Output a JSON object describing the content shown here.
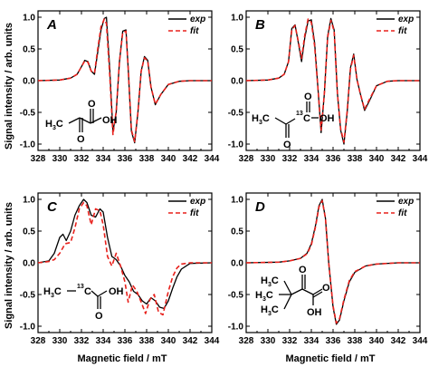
{
  "figure": {
    "xlabel_bottom_left": "Magnetic field / mT",
    "xlabel_bottom_right": "Magnetic field / mT",
    "ylabel_top": "Signal intensity / arb. units",
    "ylabel_bottom": "Signal intensity / arb. units"
  },
  "colors": {
    "exp": "#000000",
    "fit": "#e8211c"
  },
  "chart_data": [
    {
      "panel": "A",
      "type": "line",
      "xlim": [
        328,
        344
      ],
      "ylim": [
        -1.1,
        1.1
      ],
      "xticks": [
        328,
        330,
        332,
        334,
        336,
        338,
        340,
        342,
        344
      ],
      "yticks": [
        -1.0,
        -0.5,
        0.0,
        0.5,
        1.0
      ],
      "legend": "top-right",
      "structure": {
        "lines": [
          "H3C",
          "O",
          "OH",
          "O"
        ]
      },
      "series": [
        {
          "name": "exp",
          "style": "solid",
          "color": "#000000",
          "x": [
            328,
            330,
            331,
            331.6,
            332,
            332.3,
            332.6,
            332.9,
            333.2,
            333.5,
            333.8,
            334.1,
            334.3,
            334.6,
            334.9,
            335.2,
            335.5,
            335.8,
            336.1,
            336.3,
            336.6,
            336.9,
            337.2,
            337.5,
            337.8,
            338.1,
            338.4,
            338.8,
            339.3,
            340,
            341,
            342,
            344
          ],
          "y": [
            0,
            0.01,
            0.04,
            0.1,
            0.22,
            0.32,
            0.3,
            0.15,
            0.1,
            0.45,
            0.8,
            0.98,
            1.0,
            0.2,
            -0.8,
            -0.5,
            0.3,
            0.78,
            0.8,
            0.2,
            -0.8,
            -0.98,
            -0.5,
            0.15,
            0.38,
            0.32,
            -0.1,
            -0.38,
            -0.22,
            -0.06,
            -0.01,
            0,
            0
          ]
        },
        {
          "name": "fit",
          "style": "dashed",
          "color": "#e8211c",
          "x": [
            328,
            330,
            331,
            331.6,
            332,
            332.3,
            332.6,
            332.9,
            333.2,
            333.5,
            333.8,
            334.1,
            334.3,
            334.6,
            334.9,
            335.2,
            335.5,
            335.8,
            336.1,
            336.3,
            336.6,
            336.9,
            337.2,
            337.5,
            337.8,
            338.1,
            338.4,
            338.8,
            339.3,
            340,
            341,
            342,
            344
          ],
          "y": [
            0,
            0.01,
            0.04,
            0.1,
            0.22,
            0.31,
            0.29,
            0.15,
            0.12,
            0.5,
            0.85,
            0.97,
            0.9,
            0.1,
            -0.85,
            -0.48,
            0.3,
            0.76,
            0.78,
            0.2,
            -0.78,
            -0.96,
            -0.5,
            0.15,
            0.36,
            0.31,
            -0.1,
            -0.37,
            -0.22,
            -0.06,
            -0.01,
            0,
            0
          ]
        }
      ]
    },
    {
      "panel": "B",
      "type": "line",
      "xlim": [
        328,
        344
      ],
      "ylim": [
        -1.1,
        1.1
      ],
      "xticks": [
        328,
        330,
        332,
        334,
        336,
        338,
        340,
        342,
        344
      ],
      "yticks": [
        -1.0,
        -0.5,
        0.0,
        0.5,
        1.0
      ],
      "legend": "top-right",
      "structure": {
        "lines": [
          "H3C",
          "13",
          "C",
          "OH",
          "O",
          "O"
        ]
      },
      "series": [
        {
          "name": "exp",
          "style": "solid",
          "color": "#000000",
          "x": [
            328,
            330,
            331,
            331.5,
            331.9,
            332.2,
            332.5,
            332.8,
            333.1,
            333.4,
            333.7,
            334,
            334.3,
            334.6,
            334.9,
            335.2,
            335.5,
            335.8,
            336.1,
            336.4,
            336.7,
            337,
            337.3,
            337.6,
            337.9,
            338.2,
            338.5,
            338.9,
            339.4,
            340,
            341,
            342,
            344
          ],
          "y": [
            0,
            0.01,
            0.04,
            0.1,
            0.3,
            0.82,
            0.88,
            0.6,
            0.3,
            0.68,
            0.94,
            0.96,
            0.6,
            -0.1,
            -0.82,
            -0.2,
            0.7,
            0.98,
            0.8,
            -0.2,
            -0.78,
            -1.0,
            -0.5,
            0.2,
            0.42,
            0.02,
            -0.2,
            -0.47,
            -0.3,
            -0.08,
            -0.01,
            0,
            0
          ]
        },
        {
          "name": "fit",
          "style": "dashed",
          "color": "#e8211c",
          "x": [
            328,
            330,
            331,
            331.5,
            331.9,
            332.2,
            332.5,
            332.8,
            333.1,
            333.4,
            333.7,
            334,
            334.3,
            334.6,
            334.9,
            335.2,
            335.5,
            335.8,
            336.1,
            336.4,
            336.7,
            337,
            337.3,
            337.6,
            337.9,
            338.2,
            338.5,
            338.9,
            339.4,
            340,
            341,
            342,
            344
          ],
          "y": [
            0,
            0.01,
            0.04,
            0.1,
            0.3,
            0.8,
            0.87,
            0.62,
            0.35,
            0.72,
            0.97,
            0.92,
            0.55,
            -0.1,
            -0.78,
            -0.2,
            0.68,
            0.95,
            0.78,
            -0.2,
            -0.76,
            -0.97,
            -0.48,
            0.18,
            0.4,
            0.02,
            -0.2,
            -0.45,
            -0.28,
            -0.08,
            -0.01,
            0,
            0
          ]
        }
      ]
    },
    {
      "panel": "C",
      "type": "line",
      "xlim": [
        328,
        344
      ],
      "ylim": [
        -1.1,
        1.1
      ],
      "xticks": [
        328,
        330,
        332,
        334,
        336,
        338,
        340,
        342,
        344
      ],
      "yticks": [
        -1.0,
        -0.5,
        0.0,
        0.5,
        1.0
      ],
      "legend": "top-right",
      "structure": {
        "lines": [
          "H3C",
          "13",
          "C",
          "OH",
          "O"
        ]
      },
      "series": [
        {
          "name": "exp",
          "style": "solid",
          "color": "#000000",
          "x": [
            328,
            329,
            329.5,
            330,
            330.3,
            330.6,
            331,
            331.4,
            331.8,
            332.2,
            332.5,
            332.9,
            333.3,
            333.7,
            334,
            334.4,
            334.8,
            335.2,
            335.6,
            336,
            336.4,
            336.8,
            337.2,
            337.6,
            338,
            338.4,
            338.8,
            339.2,
            339.6,
            340,
            340.4,
            340.8,
            341.2,
            342,
            344
          ],
          "y": [
            0,
            0.03,
            0.15,
            0.4,
            0.45,
            0.35,
            0.5,
            0.75,
            0.9,
            1.0,
            0.95,
            0.75,
            0.72,
            0.85,
            0.8,
            0.4,
            0.1,
            0.05,
            -0.05,
            -0.2,
            -0.3,
            -0.45,
            -0.5,
            -0.6,
            -0.65,
            -0.55,
            -0.6,
            -0.7,
            -0.72,
            -0.6,
            -0.4,
            -0.22,
            -0.1,
            -0.01,
            0
          ]
        },
        {
          "name": "fit",
          "style": "dashed",
          "color": "#e8211c",
          "x": [
            328,
            329,
            329.5,
            330,
            330.5,
            331,
            331.4,
            331.8,
            332.2,
            332.5,
            332.9,
            333.3,
            333.7,
            334,
            334.4,
            334.8,
            335.2,
            335.6,
            336,
            336.3,
            336.7,
            337.1,
            337.5,
            337.9,
            338.3,
            338.7,
            339.1,
            339.5,
            340,
            340.4,
            340.8,
            341.2,
            342,
            344
          ],
          "y": [
            0,
            0.02,
            0.05,
            0.15,
            0.3,
            0.32,
            0.55,
            0.85,
            0.95,
            0.9,
            0.6,
            0.85,
            0.82,
            0.6,
            0.1,
            -0.05,
            0.15,
            -0.05,
            -0.3,
            -0.62,
            -0.35,
            -0.45,
            -0.62,
            -0.8,
            -0.58,
            -0.5,
            -0.78,
            -0.82,
            -0.45,
            -0.22,
            -0.08,
            -0.02,
            0,
            0
          ]
        }
      ]
    },
    {
      "panel": "D",
      "type": "line",
      "xlim": [
        328,
        344
      ],
      "ylim": [
        -1.1,
        1.1
      ],
      "xticks": [
        328,
        330,
        332,
        334,
        336,
        338,
        340,
        342,
        344
      ],
      "yticks": [
        -1.0,
        -0.5,
        0.0,
        0.5,
        1.0
      ],
      "legend": "top-right",
      "structure": {
        "lines": [
          "H3C",
          "H3C",
          "H3C",
          "O",
          "OH",
          "O"
        ]
      },
      "series": [
        {
          "name": "exp",
          "style": "solid",
          "color": "#000000",
          "x": [
            328,
            331,
            332,
            333,
            333.6,
            334,
            334.4,
            334.7,
            335,
            335.3,
            335.6,
            336,
            336.3,
            336.6,
            337,
            337.5,
            338,
            339,
            340,
            342,
            344
          ],
          "y": [
            0,
            0.01,
            0.03,
            0.07,
            0.15,
            0.3,
            0.6,
            0.9,
            1.0,
            0.7,
            0.0,
            -0.7,
            -0.97,
            -0.9,
            -0.6,
            -0.3,
            -0.15,
            -0.05,
            -0.02,
            0,
            0
          ]
        },
        {
          "name": "fit",
          "style": "dashed",
          "color": "#e8211c",
          "x": [
            328,
            331,
            332,
            333,
            333.6,
            334,
            334.4,
            334.7,
            335,
            335.3,
            335.6,
            336,
            336.3,
            336.6,
            337,
            337.5,
            338,
            339,
            340,
            342,
            344
          ],
          "y": [
            0,
            0.01,
            0.03,
            0.07,
            0.14,
            0.28,
            0.58,
            0.88,
            0.98,
            0.7,
            0.0,
            -0.68,
            -0.95,
            -0.88,
            -0.58,
            -0.28,
            -0.14,
            -0.05,
            -0.02,
            0,
            0
          ]
        }
      ]
    }
  ]
}
